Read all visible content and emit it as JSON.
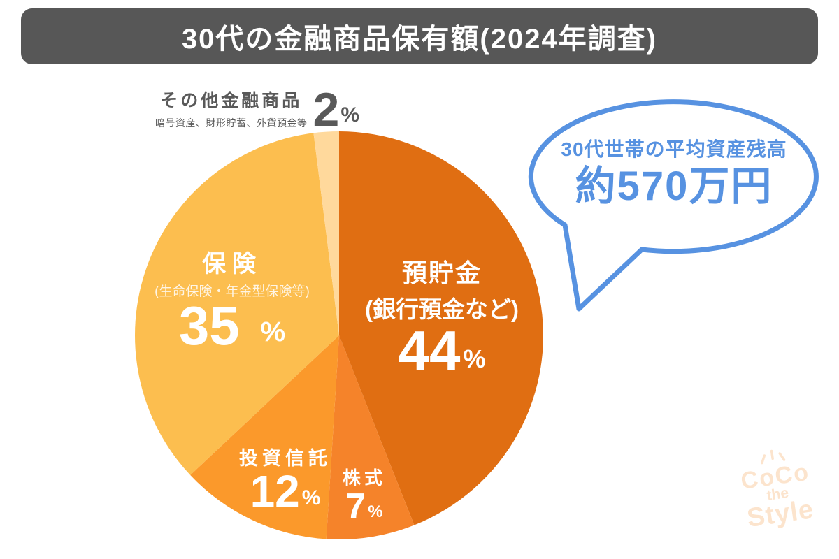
{
  "header": {
    "title": "30代の金融商品保有額(2024年調査)",
    "bg_color": "#575757",
    "text_color": "#FFFFFF"
  },
  "chart_data": {
    "type": "pie",
    "title": "30代の金融商品保有額(2024年調査)",
    "start_angle_deg": 0,
    "direction": "clockwise",
    "total": 100,
    "unit": "%",
    "slices": [
      {
        "id": "deposit",
        "label": "預貯金",
        "sublabel": "(銀行預金など)",
        "value": 44,
        "unit": "%",
        "color": "#E06E12",
        "label_color": "#FFFFFF"
      },
      {
        "id": "stocks",
        "label": "株式",
        "sublabel": "",
        "value": 7,
        "unit": "%",
        "color": "#F5832A",
        "label_color": "#FFFFFF"
      },
      {
        "id": "trust",
        "label": "投資信託",
        "sublabel": "",
        "value": 12,
        "unit": "%",
        "color": "#FB992B",
        "label_color": "#FFFFFF"
      },
      {
        "id": "insurance",
        "label": "保険",
        "sublabel": "(生命保険・年金型保険等)",
        "value": 35,
        "unit": "%",
        "color": "#FCBE4F",
        "label_color": "#FFFFFF"
      },
      {
        "id": "other",
        "label": "その他金融商品",
        "sublabel": "暗号資産、財形貯蓄、外貨預金等",
        "value": 2,
        "unit": "%",
        "color": "#FFD99C",
        "label_color": "#595959"
      }
    ]
  },
  "callout": {
    "line1": "30代世帯の平均資産残高",
    "line2": "約570万円",
    "color": "#5792E1"
  },
  "logo": {
    "line1": "CoCo",
    "line2": "the",
    "line3": "Style",
    "color": "#FCE4CD"
  }
}
